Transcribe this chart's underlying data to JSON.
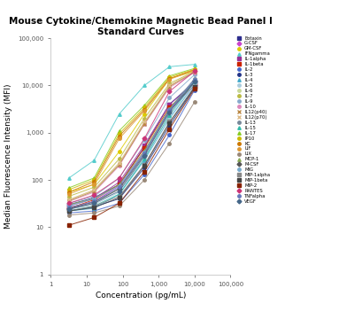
{
  "title": "Mouse Cytokine/Chemokine Magnetic Bead Panel I\nStandard Curves",
  "xlabel": "Concentration (pg/mL)",
  "ylabel": "Median Fluorescence Intensity (MFI)",
  "x_points": [
    3.2,
    16,
    80,
    400,
    2000,
    10000
  ],
  "series": [
    {
      "name": "Eotaxin",
      "color": "#2e2e8e",
      "marker": "s",
      "y": [
        30,
        42,
        80,
        500,
        4000,
        12000
      ]
    },
    {
      "name": "G-CSF",
      "color": "#cc44cc",
      "marker": "D",
      "y": [
        25,
        35,
        75,
        400,
        3000,
        10000
      ]
    },
    {
      "name": "GM-CSF",
      "color": "#ddcc00",
      "marker": "o",
      "y": [
        55,
        80,
        400,
        2500,
        14000,
        20000
      ]
    },
    {
      "name": "IFNgamma",
      "color": "#55cccc",
      "marker": "^",
      "y": [
        110,
        260,
        2500,
        10000,
        25000,
        28000
      ]
    },
    {
      "name": "IL-1alpha",
      "color": "#993399",
      "marker": "s",
      "y": [
        28,
        40,
        90,
        550,
        4000,
        11000
      ]
    },
    {
      "name": "IL-1beta",
      "color": "#cc2200",
      "marker": "s",
      "y": [
        25,
        38,
        80,
        480,
        3500,
        10000
      ]
    },
    {
      "name": "IL-2",
      "color": "#4466cc",
      "marker": "o",
      "y": [
        20,
        22,
        32,
        130,
        900,
        8000
      ]
    },
    {
      "name": "IL-3",
      "color": "#223388",
      "marker": "o",
      "y": [
        22,
        27,
        40,
        180,
        1400,
        9000
      ]
    },
    {
      "name": "IL-4",
      "color": "#44aacc",
      "marker": "^",
      "y": [
        22,
        25,
        50,
        260,
        2000,
        10500
      ]
    },
    {
      "name": "IL-5",
      "color": "#aaccdd",
      "marker": "o",
      "y": [
        24,
        30,
        55,
        300,
        2200,
        11000
      ]
    },
    {
      "name": "IL-6",
      "color": "#c8d898",
      "marker": "o",
      "y": [
        38,
        60,
        220,
        1600,
        10000,
        19000
      ]
    },
    {
      "name": "IL-7",
      "color": "#bbbb44",
      "marker": "o",
      "y": [
        45,
        70,
        280,
        2000,
        11000,
        20000
      ]
    },
    {
      "name": "IL-9",
      "color": "#88aacc",
      "marker": "o",
      "y": [
        32,
        45,
        110,
        700,
        5500,
        17000
      ]
    },
    {
      "name": "IL-10",
      "color": "#dd88bb",
      "marker": "o",
      "y": [
        35,
        55,
        200,
        1500,
        9000,
        19000
      ]
    },
    {
      "name": "IL12(p40)",
      "color": "#bb8844",
      "marker": "x",
      "y": [
        36,
        58,
        210,
        1550,
        9500,
        19500
      ]
    },
    {
      "name": "IL12(p70)",
      "color": "#ddbb88",
      "marker": "x",
      "y": [
        38,
        62,
        230,
        1700,
        10000,
        20000
      ]
    },
    {
      "name": "IL-13",
      "color": "#778899",
      "marker": "o",
      "y": [
        24,
        32,
        65,
        380,
        3200,
        14000
      ]
    },
    {
      "name": "IL-15",
      "color": "#33bbaa",
      "marker": "^",
      "y": [
        22,
        28,
        50,
        280,
        2400,
        12000
      ]
    },
    {
      "name": "IL-17",
      "color": "#88cc22",
      "marker": "^",
      "y": [
        68,
        110,
        1100,
        3800,
        16000,
        23000
      ]
    },
    {
      "name": "IP10",
      "color": "#ccbb00",
      "marker": "o",
      "y": [
        62,
        100,
        950,
        3400,
        15000,
        22000
      ]
    },
    {
      "name": "KC",
      "color": "#cc7700",
      "marker": "o",
      "y": [
        55,
        92,
        850,
        3100,
        14000,
        21500
      ]
    },
    {
      "name": "LIF",
      "color": "#dd9933",
      "marker": "o",
      "y": [
        50,
        82,
        750,
        2900,
        13500,
        21000
      ]
    },
    {
      "name": "LIX",
      "color": "#998877",
      "marker": "o",
      "y": [
        18,
        20,
        28,
        100,
        600,
        4500
      ]
    },
    {
      "name": "MCP-1",
      "color": "#88aa55",
      "marker": "^",
      "y": [
        30,
        40,
        80,
        420,
        3200,
        13000
      ]
    },
    {
      "name": "M-CSF",
      "color": "#555555",
      "marker": "D",
      "y": [
        25,
        34,
        65,
        340,
        2900,
        12500
      ]
    },
    {
      "name": "MIG",
      "color": "#77aacc",
      "marker": "o",
      "y": [
        28,
        40,
        75,
        380,
        3000,
        13000
      ]
    },
    {
      "name": "MIP-1alpha",
      "color": "#888888",
      "marker": "s",
      "y": [
        22,
        28,
        45,
        210,
        1700,
        9500
      ]
    },
    {
      "name": "MIP-1beta",
      "color": "#444444",
      "marker": "s",
      "y": [
        22,
        26,
        42,
        200,
        1600,
        9200
      ]
    },
    {
      "name": "MIP-2",
      "color": "#882200",
      "marker": "s",
      "y": [
        11,
        16,
        32,
        150,
        1200,
        8500
      ]
    },
    {
      "name": "RANTES",
      "color": "#cc3377",
      "marker": "D",
      "y": [
        32,
        48,
        110,
        750,
        7500,
        20000
      ]
    },
    {
      "name": "TNFalpha",
      "color": "#6677bb",
      "marker": "o",
      "y": [
        26,
        35,
        70,
        360,
        3000,
        13500
      ]
    },
    {
      "name": "VEGF",
      "color": "#446688",
      "marker": "D",
      "y": [
        24,
        32,
        58,
        320,
        2700,
        12000
      ]
    }
  ]
}
